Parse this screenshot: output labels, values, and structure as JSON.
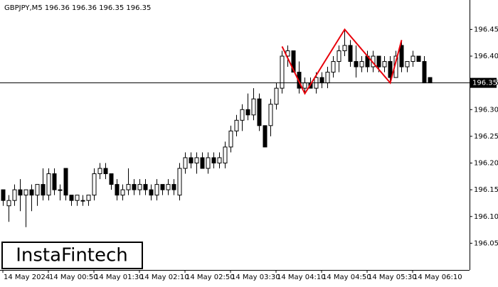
{
  "chart_data": {
    "type": "candlestick",
    "title": "GBPJPY,M5  196.36 196.36 196.35 196.35",
    "ylim": [
      196.0,
      196.505
    ],
    "yticks": [
      {
        "value": 196.05,
        "label": "196.05"
      },
      {
        "value": 196.1,
        "label": "196.10"
      },
      196.15,
      {
        "value": 196.2,
        "label": "196.20"
      },
      196.25,
      {
        "value": 196.3,
        "label": "196.30"
      },
      196.35,
      {
        "value": 196.4,
        "label": "196.40"
      },
      196.45
    ],
    "x_labels": [
      "14 May 2024",
      "14 May 00:50",
      "14 May 01:30",
      "14 May 02:10",
      "14 May 02:50",
      "14 May 03:30",
      "14 May 04:10",
      "14 May 04:50",
      "14 May 05:30",
      "14 May 06:10"
    ],
    "up_color": "#ffffff",
    "down_color": "#000000",
    "current_price": 196.35,
    "ohlc": [
      [
        196.15,
        196.15,
        196.12,
        196.13
      ],
      [
        196.12,
        196.14,
        196.09,
        196.13
      ],
      [
        196.13,
        196.16,
        196.12,
        196.15
      ],
      [
        196.15,
        196.17,
        196.11,
        196.14
      ],
      [
        196.14,
        196.15,
        196.08,
        196.15
      ],
      [
        196.15,
        196.16,
        196.11,
        196.14
      ],
      [
        196.14,
        196.16,
        196.12,
        196.16
      ],
      [
        196.16,
        196.19,
        196.13,
        196.14
      ],
      [
        196.14,
        196.19,
        196.13,
        196.18
      ],
      [
        196.18,
        196.19,
        196.14,
        196.15
      ],
      [
        196.15,
        196.16,
        196.13,
        196.15
      ],
      [
        196.19,
        196.19,
        196.13,
        196.14
      ],
      [
        196.14,
        196.14,
        196.12,
        196.13
      ],
      [
        196.13,
        196.14,
        196.12,
        196.14
      ],
      [
        196.13,
        196.14,
        196.12,
        196.13
      ],
      [
        196.13,
        196.14,
        196.12,
        196.14
      ],
      [
        196.14,
        196.19,
        196.13,
        196.18
      ],
      [
        196.18,
        196.2,
        196.17,
        196.19
      ],
      [
        196.19,
        196.2,
        196.17,
        196.18
      ],
      [
        196.18,
        196.18,
        196.15,
        196.16
      ],
      [
        196.16,
        196.17,
        196.13,
        196.14
      ],
      [
        196.14,
        196.16,
        196.13,
        196.15
      ],
      [
        196.15,
        196.19,
        196.14,
        196.16
      ],
      [
        196.16,
        196.17,
        196.14,
        196.15
      ],
      [
        196.15,
        196.17,
        196.14,
        196.16
      ],
      [
        196.16,
        196.17,
        196.14,
        196.15
      ],
      [
        196.15,
        196.16,
        196.13,
        196.14
      ],
      [
        196.14,
        196.17,
        196.13,
        196.16
      ],
      [
        196.16,
        196.16,
        196.14,
        196.15
      ],
      [
        196.15,
        196.17,
        196.14,
        196.16
      ],
      [
        196.16,
        196.17,
        196.14,
        196.15
      ],
      [
        196.14,
        196.2,
        196.13,
        196.19
      ],
      [
        196.19,
        196.22,
        196.18,
        196.21
      ],
      [
        196.21,
        196.22,
        196.19,
        196.2
      ],
      [
        196.2,
        196.22,
        196.18,
        196.21
      ],
      [
        196.21,
        196.22,
        196.19,
        196.19
      ],
      [
        196.19,
        196.22,
        196.18,
        196.21
      ],
      [
        196.21,
        196.22,
        196.19,
        196.2
      ],
      [
        196.2,
        196.22,
        196.19,
        196.21
      ],
      [
        196.2,
        196.24,
        196.19,
        196.23
      ],
      [
        196.23,
        196.27,
        196.22,
        196.26
      ],
      [
        196.26,
        196.29,
        196.25,
        196.28
      ],
      [
        196.28,
        196.31,
        196.26,
        196.3
      ],
      [
        196.3,
        196.33,
        196.28,
        196.29
      ],
      [
        196.29,
        196.34,
        196.28,
        196.32
      ],
      [
        196.32,
        196.33,
        196.26,
        196.27
      ],
      [
        196.27,
        196.27,
        196.23,
        196.23
      ],
      [
        196.27,
        196.32,
        196.25,
        196.31
      ],
      [
        196.31,
        196.35,
        196.3,
        196.34
      ],
      [
        196.34,
        196.41,
        196.33,
        196.4
      ],
      [
        196.4,
        196.42,
        196.38,
        196.41
      ],
      [
        196.41,
        196.41,
        196.37,
        196.37
      ],
      [
        196.37,
        196.39,
        196.33,
        196.34
      ],
      [
        196.34,
        196.36,
        196.33,
        196.35
      ],
      [
        196.35,
        196.36,
        196.34,
        196.34
      ],
      [
        196.34,
        196.37,
        196.33,
        196.36
      ],
      [
        196.36,
        196.37,
        196.34,
        196.35
      ],
      [
        196.35,
        196.38,
        196.34,
        196.37
      ],
      [
        196.37,
        196.4,
        196.36,
        196.39
      ],
      [
        196.39,
        196.42,
        196.37,
        196.41
      ],
      [
        196.41,
        196.45,
        196.4,
        196.42
      ],
      [
        196.42,
        196.43,
        196.38,
        196.39
      ],
      [
        196.39,
        196.42,
        196.36,
        196.38
      ],
      [
        196.38,
        196.4,
        196.37,
        196.39
      ],
      [
        196.4,
        196.41,
        196.37,
        196.38
      ],
      [
        196.38,
        196.41,
        196.37,
        196.4
      ],
      [
        196.4,
        196.4,
        196.37,
        196.38
      ],
      [
        196.38,
        196.4,
        196.37,
        196.39
      ],
      [
        196.39,
        196.4,
        196.35,
        196.36
      ],
      [
        196.36,
        196.41,
        196.36,
        196.4
      ],
      [
        196.42,
        196.43,
        196.37,
        196.38
      ],
      [
        196.38,
        196.39,
        196.37,
        196.39
      ],
      [
        196.39,
        196.41,
        196.38,
        196.4
      ],
      [
        196.4,
        196.4,
        196.39,
        196.39
      ],
      [
        196.39,
        196.4,
        196.35,
        196.35
      ],
      [
        196.36,
        196.36,
        196.35,
        196.35
      ]
    ],
    "pattern": {
      "color": "#e8000b",
      "x": [
        49,
        53,
        60,
        68,
        70
      ],
      "y": [
        196.418,
        196.33,
        196.45,
        196.35,
        196.43
      ]
    },
    "logo": "InstaFintech"
  }
}
